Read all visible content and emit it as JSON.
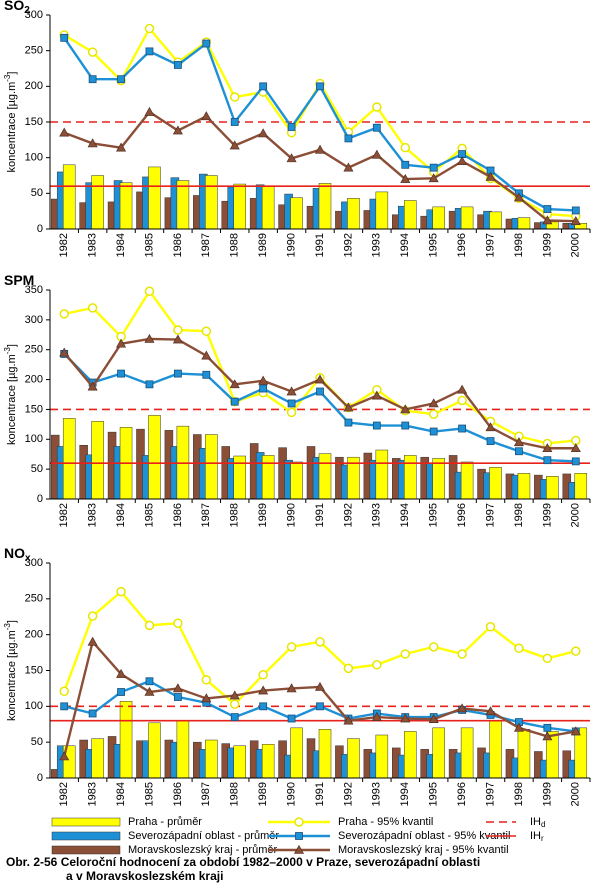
{
  "chart_data": [
    {
      "type": "combo",
      "title": "SO",
      "title_sub": "2",
      "ylabel": "koncentrace  [µg.m",
      "ylabel_sup": "-3",
      "ylabel_end": "]",
      "categories": [
        "1982",
        "1983",
        "1984",
        "1985",
        "1986",
        "1987",
        "1988",
        "1989",
        "1990",
        "1991",
        "1992",
        "1993",
        "1994",
        "1995",
        "1996",
        "1997",
        "1998",
        "1999",
        "2000"
      ],
      "ylim": [
        0,
        300
      ],
      "yticks": [
        0,
        50,
        100,
        150,
        200,
        250,
        300
      ],
      "series": [
        {
          "name": "Praha - průměr",
          "type": "bar",
          "color": "#ffff00",
          "values": [
            90,
            75,
            65,
            87,
            68,
            75,
            63,
            60,
            44,
            64,
            43,
            52,
            40,
            31,
            31,
            24,
            16,
            10,
            8
          ]
        },
        {
          "name": "Severozápadní oblast - průměr",
          "type": "bar",
          "color": "#1e90d6",
          "values": [
            80,
            65,
            68,
            73,
            72,
            77,
            59,
            62,
            49,
            57,
            38,
            42,
            32,
            27,
            29,
            25,
            15,
            10,
            8
          ]
        },
        {
          "name": "Moravskoslezský kraj - průměr",
          "type": "bar",
          "color": "#8b4e36",
          "values": [
            42,
            37,
            38,
            52,
            44,
            47,
            39,
            43,
            34,
            32,
            25,
            26,
            20,
            18,
            25,
            20,
            14,
            9,
            8
          ]
        },
        {
          "name": "Praha  - 95% kvantil",
          "type": "line",
          "marker": "circle",
          "color": "#ffff00",
          "values": [
            272,
            248,
            208,
            281,
            234,
            262,
            185,
            192,
            135,
            204,
            136,
            171,
            114,
            80,
            113,
            71,
            43,
            21,
            18
          ]
        },
        {
          "name": "Severozápadní oblast - 95% kvantil",
          "type": "line",
          "marker": "square",
          "color": "#1e90d6",
          "values": [
            268,
            210,
            210,
            249,
            230,
            260,
            150,
            200,
            143,
            200,
            127,
            142,
            90,
            86,
            105,
            82,
            50,
            28,
            26
          ]
        },
        {
          "name": "Moravskoslezský kraj - 95% kvantil",
          "type": "line",
          "marker": "triangle",
          "color": "#8b4e36",
          "values": [
            135,
            120,
            114,
            164,
            138,
            158,
            117,
            134,
            99,
            111,
            86,
            104,
            70,
            71,
            95,
            73,
            44,
            12,
            11
          ]
        }
      ],
      "hlines": [
        {
          "name": "IH",
          "sub": "d",
          "value": 150,
          "color": "#e8211b",
          "dashed": true
        },
        {
          "name": "IH",
          "sub": "r",
          "value": 60,
          "color": "#e8211b",
          "dashed": false
        }
      ]
    },
    {
      "type": "combo",
      "title": "SPM",
      "ylabel": "koncentrace  [µg.m",
      "ylabel_sup": "-3",
      "ylabel_end": "]",
      "categories": [
        "1982",
        "1983",
        "1984",
        "1985",
        "1986",
        "1987",
        "1988",
        "1989",
        "1990",
        "1991",
        "1992",
        "1993",
        "1994",
        "1995",
        "1996",
        "1997",
        "1998",
        "1999",
        "2000"
      ],
      "ylim": [
        0,
        350
      ],
      "yticks": [
        0,
        50,
        100,
        150,
        200,
        250,
        300,
        350
      ],
      "series": [
        {
          "name": "Praha - průměr",
          "type": "bar",
          "color": "#ffff00",
          "values": [
            135,
            130,
            120,
            140,
            122,
            108,
            72,
            73,
            62,
            76,
            70,
            82,
            73,
            68,
            62,
            53,
            43,
            38,
            43
          ]
        },
        {
          "name": "Severozápadní oblast - průměr",
          "type": "bar",
          "color": "#1e90d6",
          "values": [
            88,
            74,
            88,
            73,
            88,
            85,
            68,
            78,
            65,
            70,
            57,
            65,
            65,
            60,
            45,
            44,
            40,
            33,
            28
          ]
        },
        {
          "name": "Moravskoslezský kraj - průměr",
          "type": "bar",
          "color": "#8b4e36",
          "values": [
            107,
            90,
            112,
            117,
            115,
            108,
            88,
            93,
            86,
            88,
            70,
            77,
            68,
            70,
            73,
            50,
            42,
            40,
            42
          ]
        },
        {
          "name": "Praha  - 95% kvantil",
          "type": "line",
          "marker": "circle",
          "color": "#ffff00",
          "values": [
            310,
            320,
            272,
            348,
            283,
            281,
            163,
            178,
            145,
            203,
            153,
            183,
            148,
            142,
            165,
            130,
            105,
            93,
            98
          ]
        },
        {
          "name": "Severozápadní oblast - 95% kvantil",
          "type": "line",
          "marker": "square",
          "color": "#1e90d6",
          "values": [
            243,
            195,
            210,
            192,
            210,
            208,
            163,
            185,
            160,
            180,
            128,
            123,
            123,
            113,
            118,
            97,
            80,
            65,
            63
          ]
        },
        {
          "name": "Moravskoslezský kraj - 95% kvantil",
          "type": "line",
          "marker": "triangle",
          "color": "#8b4e36",
          "values": [
            245,
            188,
            260,
            268,
            267,
            240,
            192,
            198,
            180,
            200,
            153,
            173,
            150,
            160,
            183,
            120,
            95,
            85,
            85
          ]
        }
      ],
      "hlines": [
        {
          "name": "IH",
          "sub": "d",
          "value": 150,
          "color": "#e8211b",
          "dashed": true
        },
        {
          "name": "IH",
          "sub": "r",
          "value": 60,
          "color": "#e8211b",
          "dashed": false
        }
      ]
    },
    {
      "type": "combo",
      "title": "NO",
      "title_sub": "x",
      "ylabel": "koncentrace  [µg.m",
      "ylabel_sup": "-3",
      "ylabel_end": "]",
      "categories": [
        "1982",
        "1983",
        "1984",
        "1985",
        "1986",
        "1987",
        "1988",
        "1989",
        "1990",
        "1991",
        "1992",
        "1993",
        "1994",
        "1995",
        "1996",
        "1997",
        "1998",
        "1999",
        "2000"
      ],
      "ylim": [
        0,
        300
      ],
      "yticks": [
        0,
        50,
        100,
        150,
        200,
        250,
        300
      ],
      "series": [
        {
          "name": "Praha - průměr",
          "type": "bar",
          "color": "#ffff00",
          "values": [
            45,
            55,
            107,
            77,
            80,
            53,
            45,
            47,
            70,
            68,
            55,
            60,
            65,
            70,
            70,
            80,
            68,
            65,
            70
          ]
        },
        {
          "name": "Severozápadní oblast - průměr",
          "type": "bar",
          "color": "#1e90d6",
          "values": [
            45,
            40,
            47,
            52,
            50,
            40,
            42,
            40,
            32,
            38,
            33,
            35,
            32,
            33,
            35,
            35,
            28,
            25,
            25
          ]
        },
        {
          "name": "Moravskoslezský kraj - průměr",
          "type": "bar",
          "color": "#8b4e36",
          "values": [
            12,
            53,
            58,
            52,
            53,
            50,
            48,
            52,
            52,
            55,
            45,
            40,
            42,
            40,
            40,
            42,
            40,
            37,
            38
          ]
        },
        {
          "name": "Praha  - 95% kvantil",
          "type": "line",
          "marker": "circle",
          "color": "#ffff00",
          "values": [
            121,
            226,
            260,
            213,
            216,
            137,
            103,
            144,
            183,
            190,
            153,
            158,
            173,
            183,
            173,
            211,
            181,
            167,
            177
          ]
        },
        {
          "name": "Severozápadní oblast - 95% kvantil",
          "type": "line",
          "marker": "square",
          "color": "#1e90d6",
          "values": [
            100,
            90,
            120,
            135,
            113,
            105,
            85,
            100,
            83,
            100,
            83,
            90,
            85,
            85,
            95,
            88,
            78,
            70,
            65
          ]
        },
        {
          "name": "Moravskoslezský kraj - 95% kvantil",
          "type": "line",
          "marker": "triangle",
          "color": "#8b4e36",
          "values": [
            30,
            190,
            145,
            120,
            125,
            111,
            115,
            122,
            125,
            127,
            80,
            85,
            83,
            82,
            97,
            93,
            70,
            58,
            65
          ]
        }
      ],
      "hlines": [
        {
          "name": "IH",
          "sub": "d",
          "value": 100,
          "color": "#e8211b",
          "dashed": true
        },
        {
          "name": "IH",
          "sub": "r",
          "value": 80,
          "color": "#e8211b",
          "dashed": false
        }
      ]
    }
  ],
  "caption": [
    "Obr. 2-56  Celoroční hodnocení za období 1982–2000 v Praze, severozápadní oblasti",
    "a v Moravskoslezském kraji"
  ]
}
